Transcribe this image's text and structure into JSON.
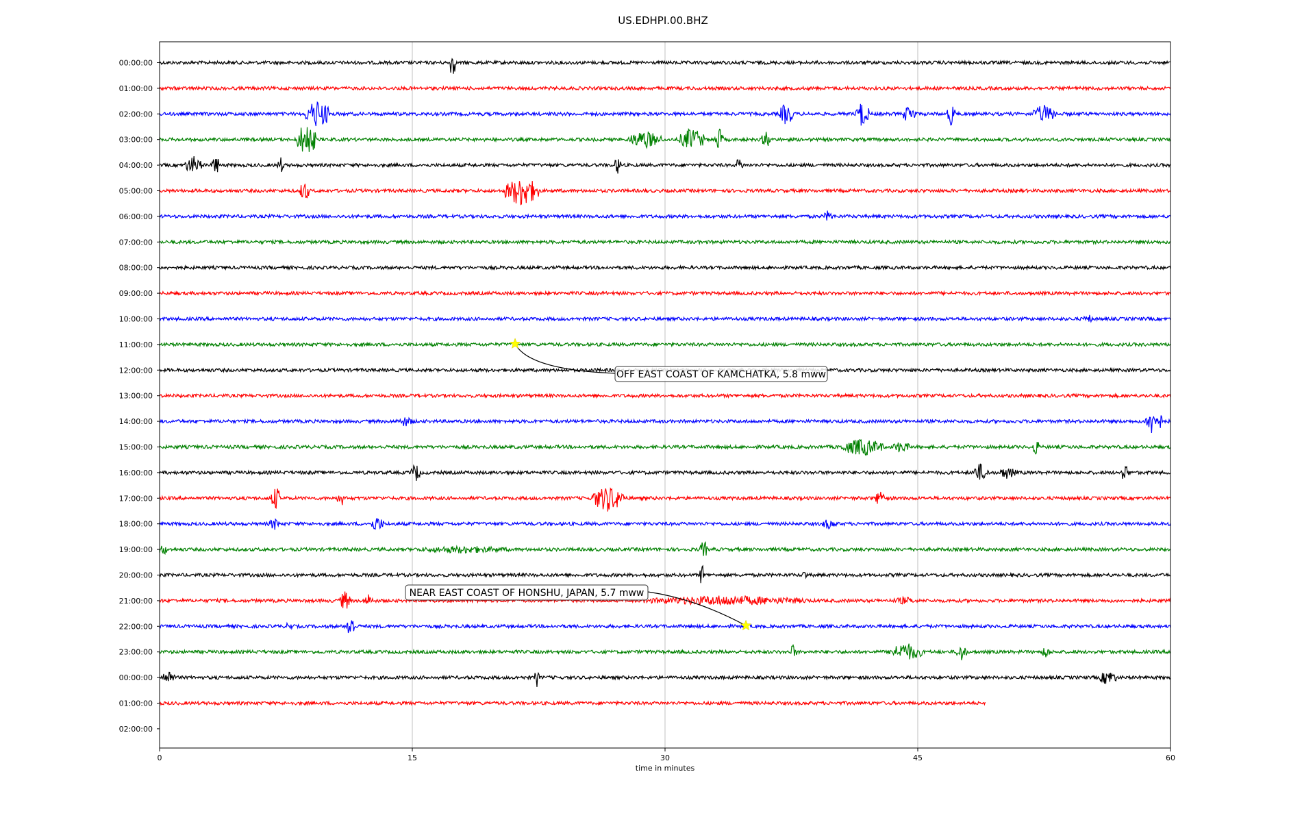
{
  "chart_data": {
    "type": "line",
    "title": "US.EDHPI.00.BHZ",
    "xlabel": "time in minutes",
    "ylabel": "",
    "xlim": [
      0,
      60
    ],
    "xticks": [
      0,
      15,
      30,
      45,
      60
    ],
    "grid": "vertical",
    "row_labels": [
      "00:00:00",
      "01:00:00",
      "02:00:00",
      "03:00:00",
      "04:00:00",
      "05:00:00",
      "06:00:00",
      "07:00:00",
      "08:00:00",
      "09:00:00",
      "10:00:00",
      "11:00:00",
      "12:00:00",
      "13:00:00",
      "14:00:00",
      "15:00:00",
      "16:00:00",
      "17:00:00",
      "18:00:00",
      "19:00:00",
      "20:00:00",
      "21:00:00",
      "22:00:00",
      "23:00:00",
      "00:00:00",
      "01:00:00",
      "02:00:00"
    ],
    "trace_colors": [
      "#000000",
      "#ff0000",
      "#0000ff",
      "#008000"
    ],
    "last_trace_end_minute": 49,
    "events": [
      {
        "label": "OFF EAST COAST OF KAMCHATKA, 5.8 mww",
        "row": 11,
        "minute": 21.1,
        "marker_color": "#ffff00"
      },
      {
        "label": "NEAR EAST COAST OF HONSHU, JAPAN, 5.7 mww",
        "row": 22,
        "minute": 34.8,
        "marker_color": "#ffff00"
      }
    ],
    "bursts": [
      {
        "row": 0,
        "minute": 17.4,
        "amp": 30,
        "dur": 0.3
      },
      {
        "row": 2,
        "minute": 9.4,
        "amp": 22,
        "dur": 1.5
      },
      {
        "row": 2,
        "minute": 37.2,
        "amp": 18,
        "dur": 0.8
      },
      {
        "row": 2,
        "minute": 41.7,
        "amp": 20,
        "dur": 0.8
      },
      {
        "row": 2,
        "minute": 44.5,
        "amp": 14,
        "dur": 0.8
      },
      {
        "row": 2,
        "minute": 47.0,
        "amp": 18,
        "dur": 0.5
      },
      {
        "row": 2,
        "minute": 52.5,
        "amp": 14,
        "dur": 1.5
      },
      {
        "row": 3,
        "minute": 8.7,
        "amp": 26,
        "dur": 1.2
      },
      {
        "row": 3,
        "minute": 28.8,
        "amp": 14,
        "dur": 2.0
      },
      {
        "row": 3,
        "minute": 31.6,
        "amp": 18,
        "dur": 1.5
      },
      {
        "row": 3,
        "minute": 33.2,
        "amp": 18,
        "dur": 0.5
      },
      {
        "row": 3,
        "minute": 36.0,
        "amp": 14,
        "dur": 0.5
      },
      {
        "row": 4,
        "minute": 2.0,
        "amp": 14,
        "dur": 1.0
      },
      {
        "row": 4,
        "minute": 3.3,
        "amp": 20,
        "dur": 0.4
      },
      {
        "row": 4,
        "minute": 7.2,
        "amp": 12,
        "dur": 0.4
      },
      {
        "row": 4,
        "minute": 27.2,
        "amp": 14,
        "dur": 0.4
      },
      {
        "row": 4,
        "minute": 34.4,
        "amp": 12,
        "dur": 0.4
      },
      {
        "row": 5,
        "minute": 8.6,
        "amp": 18,
        "dur": 0.5
      },
      {
        "row": 5,
        "minute": 21.5,
        "amp": 24,
        "dur": 2.0
      },
      {
        "row": 6,
        "minute": 39.7,
        "amp": 10,
        "dur": 0.5
      },
      {
        "row": 10,
        "minute": 55.1,
        "amp": 8,
        "dur": 0.5
      },
      {
        "row": 14,
        "minute": 14.6,
        "amp": 8,
        "dur": 1.0
      },
      {
        "row": 14,
        "minute": 59.0,
        "amp": 22,
        "dur": 1.0
      },
      {
        "row": 15,
        "minute": 41.7,
        "amp": 14,
        "dur": 2.5
      },
      {
        "row": 15,
        "minute": 44.0,
        "amp": 10,
        "dur": 1.0
      },
      {
        "row": 15,
        "minute": 52.0,
        "amp": 14,
        "dur": 0.4
      },
      {
        "row": 16,
        "minute": 15.2,
        "amp": 14,
        "dur": 0.6
      },
      {
        "row": 16,
        "minute": 48.7,
        "amp": 14,
        "dur": 1.0
      },
      {
        "row": 16,
        "minute": 50.3,
        "amp": 10,
        "dur": 1.0
      },
      {
        "row": 16,
        "minute": 57.3,
        "amp": 14,
        "dur": 0.5
      },
      {
        "row": 17,
        "minute": 6.9,
        "amp": 18,
        "dur": 0.6
      },
      {
        "row": 17,
        "minute": 10.8,
        "amp": 12,
        "dur": 0.5
      },
      {
        "row": 17,
        "minute": 26.6,
        "amp": 20,
        "dur": 2.0
      },
      {
        "row": 17,
        "minute": 42.8,
        "amp": 14,
        "dur": 0.6
      },
      {
        "row": 18,
        "minute": 6.8,
        "amp": 10,
        "dur": 0.6
      },
      {
        "row": 18,
        "minute": 12.9,
        "amp": 12,
        "dur": 0.8
      },
      {
        "row": 18,
        "minute": 39.7,
        "amp": 8,
        "dur": 1.0
      },
      {
        "row": 19,
        "minute": 0.2,
        "amp": 10,
        "dur": 0.5
      },
      {
        "row": 19,
        "minute": 18.0,
        "amp": 6,
        "dur": 6.0
      },
      {
        "row": 19,
        "minute": 32.3,
        "amp": 14,
        "dur": 0.5
      },
      {
        "row": 20,
        "minute": 32.2,
        "amp": 18,
        "dur": 0.3
      },
      {
        "row": 20,
        "minute": 38.3,
        "amp": 8,
        "dur": 0.3
      },
      {
        "row": 21,
        "minute": 11.0,
        "amp": 16,
        "dur": 0.6
      },
      {
        "row": 21,
        "minute": 12.4,
        "amp": 10,
        "dur": 0.6
      },
      {
        "row": 21,
        "minute": 33.6,
        "amp": 8,
        "dur": 10.0
      },
      {
        "row": 21,
        "minute": 44.2,
        "amp": 6,
        "dur": 1.5
      },
      {
        "row": 22,
        "minute": 11.3,
        "amp": 20,
        "dur": 0.6
      },
      {
        "row": 22,
        "minute": 7.7,
        "amp": 8,
        "dur": 0.4
      },
      {
        "row": 23,
        "minute": 37.6,
        "amp": 12,
        "dur": 0.4
      },
      {
        "row": 23,
        "minute": 44.3,
        "amp": 14,
        "dur": 2.0
      },
      {
        "row": 23,
        "minute": 47.6,
        "amp": 14,
        "dur": 0.6
      },
      {
        "row": 23,
        "minute": 52.6,
        "amp": 12,
        "dur": 0.4
      },
      {
        "row": 24,
        "minute": 0.5,
        "amp": 12,
        "dur": 0.8
      },
      {
        "row": 24,
        "minute": 22.4,
        "amp": 14,
        "dur": 0.3
      },
      {
        "row": 24,
        "minute": 56.3,
        "amp": 12,
        "dur": 1.0
      }
    ]
  }
}
